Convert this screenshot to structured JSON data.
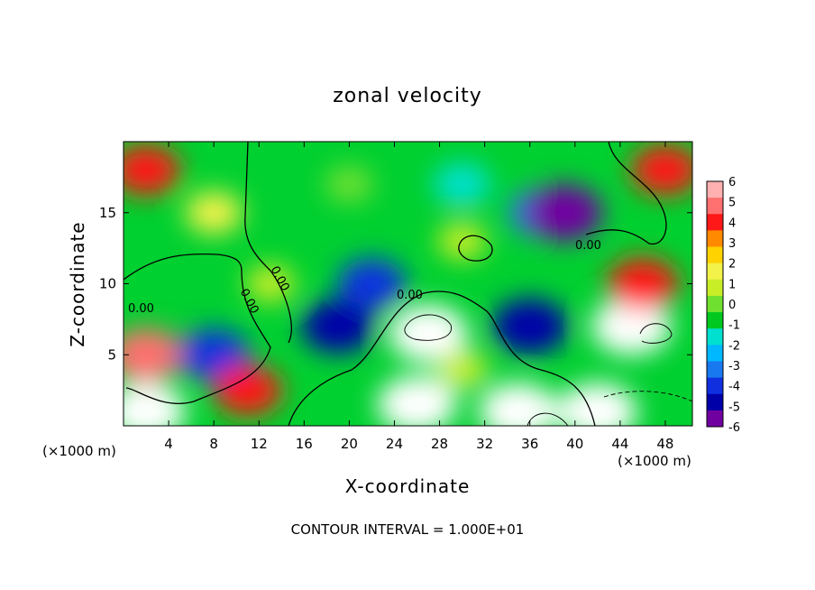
{
  "chart_data": {
    "type": "heatmap",
    "title": "zonal velocity",
    "xlabel": "X-coordinate",
    "ylabel": "Z-coordinate",
    "x_unit_left": "(×1000 m)",
    "x_unit_right": "(×1000 m)",
    "xlim": [
      0,
      50.4
    ],
    "ylim": [
      0,
      20
    ],
    "x_ticks": [
      4,
      8,
      12,
      16,
      20,
      24,
      28,
      32,
      36,
      40,
      44,
      48
    ],
    "y_ticks": [
      5,
      10,
      15
    ],
    "colorbar": {
      "ticks": [
        6,
        5,
        4,
        3,
        2,
        1,
        0,
        -1,
        -2,
        -3,
        -4,
        -5,
        -6
      ],
      "colors": [
        "#ffb0b0",
        "#ff7070",
        "#ff1818",
        "#ff8a00",
        "#ffd200",
        "#f2f24a",
        "#c8ee28",
        "#70e030",
        "#00c820",
        "#00e0d0",
        "#00b8ff",
        "#1878f0",
        "#1030e0",
        "#0000a8",
        "#7000a0"
      ]
    },
    "contour_label": "0.00",
    "contour_interval_text": "CONTOUR INTERVAL = 1.000E+01",
    "field_features": [
      {
        "x": 2,
        "z": 18,
        "value": 4
      },
      {
        "x": 48,
        "z": 18,
        "value": 4
      },
      {
        "x": 8,
        "z": 15,
        "value": 2
      },
      {
        "x": 20,
        "z": 17,
        "value": 0.3
      },
      {
        "x": 30,
        "z": 17,
        "value": -2
      },
      {
        "x": 37,
        "z": 15,
        "value": -3.5
      },
      {
        "x": 39,
        "z": 15,
        "value": -5.8
      },
      {
        "x": 22,
        "z": 10,
        "value": -4
      },
      {
        "x": 19,
        "z": 7,
        "value": -5
      },
      {
        "x": 36,
        "z": 7,
        "value": -5.5
      },
      {
        "x": 27,
        "z": 6.5,
        "value": 6
      },
      {
        "x": 45,
        "z": 7,
        "value": 6
      },
      {
        "x": 46,
        "z": 10,
        "value": 4.5
      },
      {
        "x": 2,
        "z": 5,
        "value": 5
      },
      {
        "x": 8,
        "z": 5,
        "value": -4.5
      },
      {
        "x": 11,
        "z": 2.5,
        "value": 4
      },
      {
        "x": 26,
        "z": 1.5,
        "value": 6
      },
      {
        "x": 35,
        "z": 1,
        "value": 6
      },
      {
        "x": 42,
        "z": 1,
        "value": 6
      },
      {
        "x": 2,
        "z": 1,
        "value": 6
      },
      {
        "x": 13,
        "z": 10,
        "value": 0.5
      },
      {
        "x": 30,
        "z": 13,
        "value": 0.5
      },
      {
        "x": 30,
        "z": 4,
        "value": 1
      }
    ]
  }
}
